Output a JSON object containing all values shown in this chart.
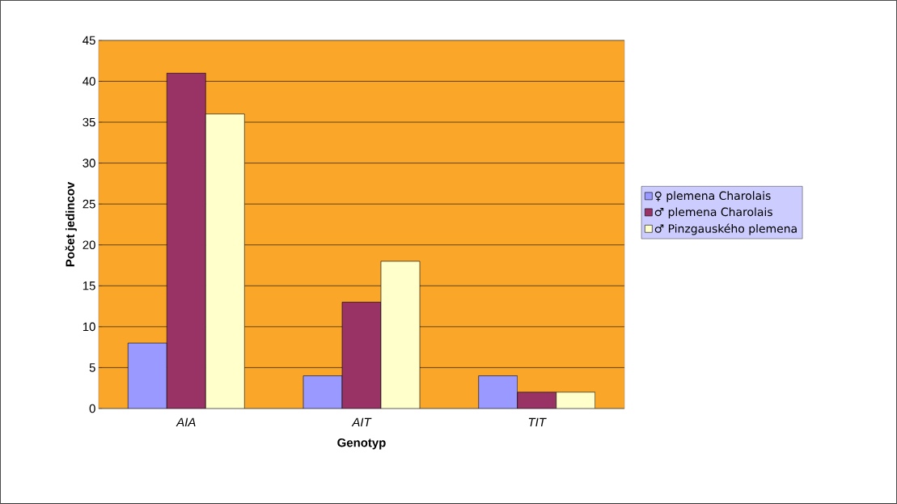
{
  "chart_data": {
    "type": "bar",
    "xlabel": "Genotyp",
    "ylabel": "Počet jedincov",
    "categories": [
      "AIA",
      "AIT",
      "TIT"
    ],
    "series": [
      {
        "name": "♀ plemena Charolais",
        "color": "#9999ff",
        "values": [
          8,
          4,
          4
        ]
      },
      {
        "name": "♂ plemena Charolais",
        "color": "#993366",
        "values": [
          41,
          13,
          2
        ]
      },
      {
        "name": "♂ Pinzgauského plemena",
        "color": "#ffffcc",
        "values": [
          36,
          18,
          2
        ]
      }
    ],
    "ylim": [
      0,
      45
    ],
    "yticks": [
      0,
      5,
      10,
      15,
      20,
      25,
      30,
      35,
      40,
      45
    ],
    "grid": "y",
    "legend": "right"
  }
}
